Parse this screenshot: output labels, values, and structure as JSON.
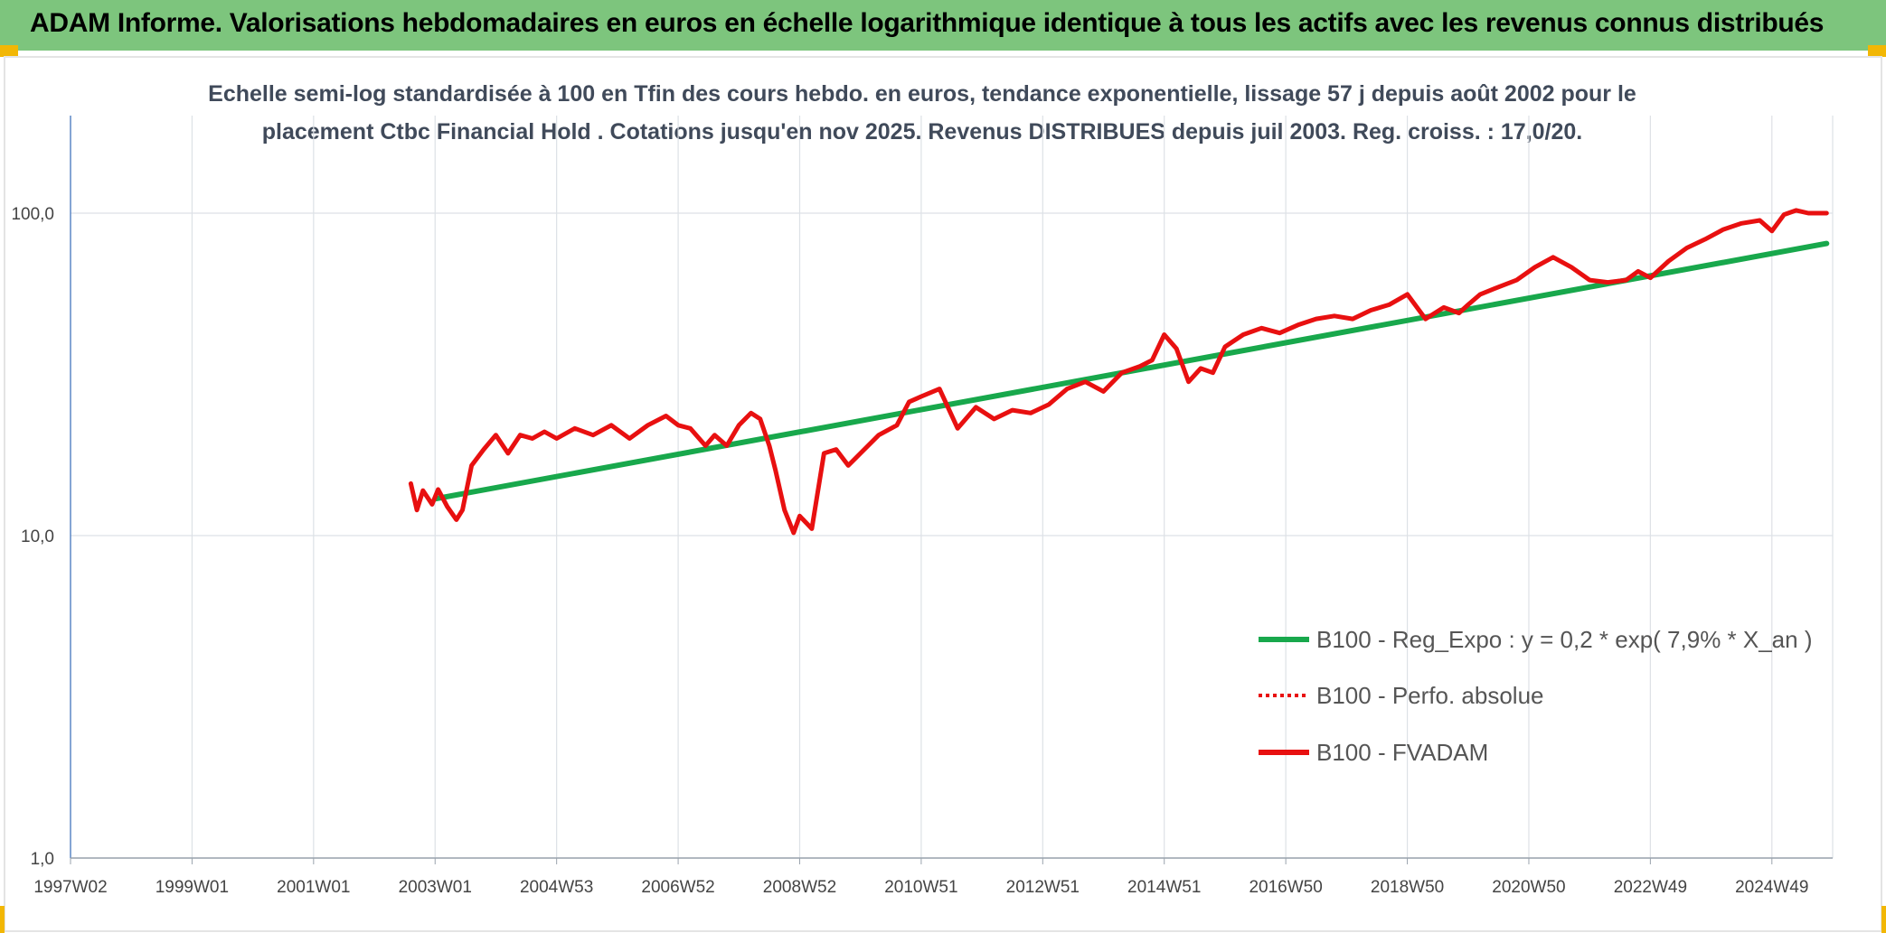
{
  "banner": {
    "title": "ADAM Informe. Valorisations hebdomadaires en euros en échelle logarithmique identique à tous les actifs avec les revenus connus distribués",
    "color": "#7dc57d",
    "corner_color": "#f2b705"
  },
  "chart_data": {
    "type": "line",
    "title_line1": "Echelle semi-log standardisée à 100 en Tfin des cours hebdo. en euros, tendance exponentielle, lissage 57 j depuis août 2002 pour le",
    "title_line2": "placement Ctbc Financial Hold . Cotations jusqu'en nov 2025. Revenus DISTRIBUES depuis juil 2003. Reg. croiss. : 17,0/20.",
    "y_scale": "log",
    "ylim": [
      1,
      100
    ],
    "y_ticks": [
      "100,0",
      "10,0",
      "1,0"
    ],
    "y_tick_values": [
      100,
      10,
      1
    ],
    "x_tick_labels": [
      "1997W02",
      "1999W01",
      "2001W01",
      "2003W01",
      "2004W53",
      "2006W52",
      "2008W52",
      "2010W51",
      "2012W51",
      "2014W51",
      "2016W50",
      "2018W50",
      "2020W50",
      "2022W49",
      "2024W49"
    ],
    "x_tick_years": [
      1997.0,
      1999.0,
      2001.0,
      2003.0,
      2005.0,
      2007.0,
      2009.0,
      2011.0,
      2013.0,
      2015.0,
      2017.0,
      2019.0,
      2021.0,
      2023.0,
      2025.0
    ],
    "xlim": [
      1997.0,
      2026.0
    ],
    "grid": true,
    "legend_position": "right",
    "series": [
      {
        "name": "B100 - Reg_Expo : y = 0,2 * exp( 7,9% *  X_an )",
        "color": "#18a84c",
        "style": "solid",
        "x": [
          2003.0,
          2025.9
        ],
        "y": [
          13.0,
          80.5
        ]
      },
      {
        "name": "B100 - Perfo. absolue",
        "color": "#e81010",
        "style": "dotted",
        "x": [],
        "y": []
      },
      {
        "name": "B100 - FVADAM",
        "color": "#e81010",
        "style": "solid",
        "x": [
          2002.6,
          2002.7,
          2002.8,
          2002.95,
          2003.05,
          2003.2,
          2003.35,
          2003.45,
          2003.6,
          2003.8,
          2004.0,
          2004.2,
          2004.4,
          2004.6,
          2004.8,
          2005.0,
          2005.3,
          2005.6,
          2005.9,
          2006.2,
          2006.5,
          2006.8,
          2007.0,
          2007.2,
          2007.45,
          2007.6,
          2007.8,
          2008.0,
          2008.2,
          2008.35,
          2008.5,
          2008.6,
          2008.75,
          2008.9,
          2009.0,
          2009.2,
          2009.4,
          2009.6,
          2009.8,
          2010.0,
          2010.3,
          2010.6,
          2010.8,
          2011.0,
          2011.3,
          2011.6,
          2011.9,
          2012.2,
          2012.5,
          2012.8,
          2013.1,
          2013.4,
          2013.7,
          2014.0,
          2014.3,
          2014.6,
          2014.8,
          2015.0,
          2015.2,
          2015.4,
          2015.6,
          2015.8,
          2016.0,
          2016.3,
          2016.6,
          2016.9,
          2017.2,
          2017.5,
          2017.8,
          2018.1,
          2018.4,
          2018.7,
          2019.0,
          2019.3,
          2019.6,
          2019.85,
          2020.0,
          2020.2,
          2020.5,
          2020.8,
          2021.1,
          2021.4,
          2021.7,
          2022.0,
          2022.3,
          2022.6,
          2022.8,
          2023.0,
          2023.3,
          2023.6,
          2023.9,
          2024.2,
          2024.5,
          2024.8,
          2025.0,
          2025.2,
          2025.4,
          2025.6,
          2025.9
        ],
        "y": [
          14.5,
          12.0,
          13.8,
          12.5,
          13.9,
          12.3,
          11.2,
          12.0,
          16.5,
          18.5,
          20.5,
          18.0,
          20.5,
          20.0,
          21.0,
          20.0,
          21.5,
          20.5,
          22.0,
          20.0,
          22.0,
          23.5,
          22.0,
          21.5,
          19.0,
          20.5,
          19.0,
          22.0,
          24.0,
          23.0,
          19.0,
          16.0,
          12.0,
          10.2,
          11.5,
          10.5,
          18.0,
          18.5,
          16.5,
          18.0,
          20.5,
          22.0,
          26.0,
          27.0,
          28.5,
          21.5,
          25.0,
          23.0,
          24.5,
          24.0,
          25.5,
          28.5,
          30.0,
          28.0,
          32.0,
          33.5,
          35.0,
          42.0,
          38.0,
          30.0,
          33.0,
          32.0,
          38.5,
          42.0,
          44.0,
          42.5,
          45.0,
          47.0,
          48.0,
          47.0,
          50.0,
          52.0,
          56.0,
          47.0,
          51.0,
          49.0,
          52.0,
          56.0,
          59.0,
          62.0,
          68.0,
          73.0,
          68.0,
          62.0,
          61.0,
          62.0,
          66.0,
          63.0,
          71.0,
          78.0,
          83.0,
          89.0,
          93.0,
          95.0,
          88.0,
          99.0,
          102.0,
          100.0,
          100.0
        ]
      }
    ]
  }
}
